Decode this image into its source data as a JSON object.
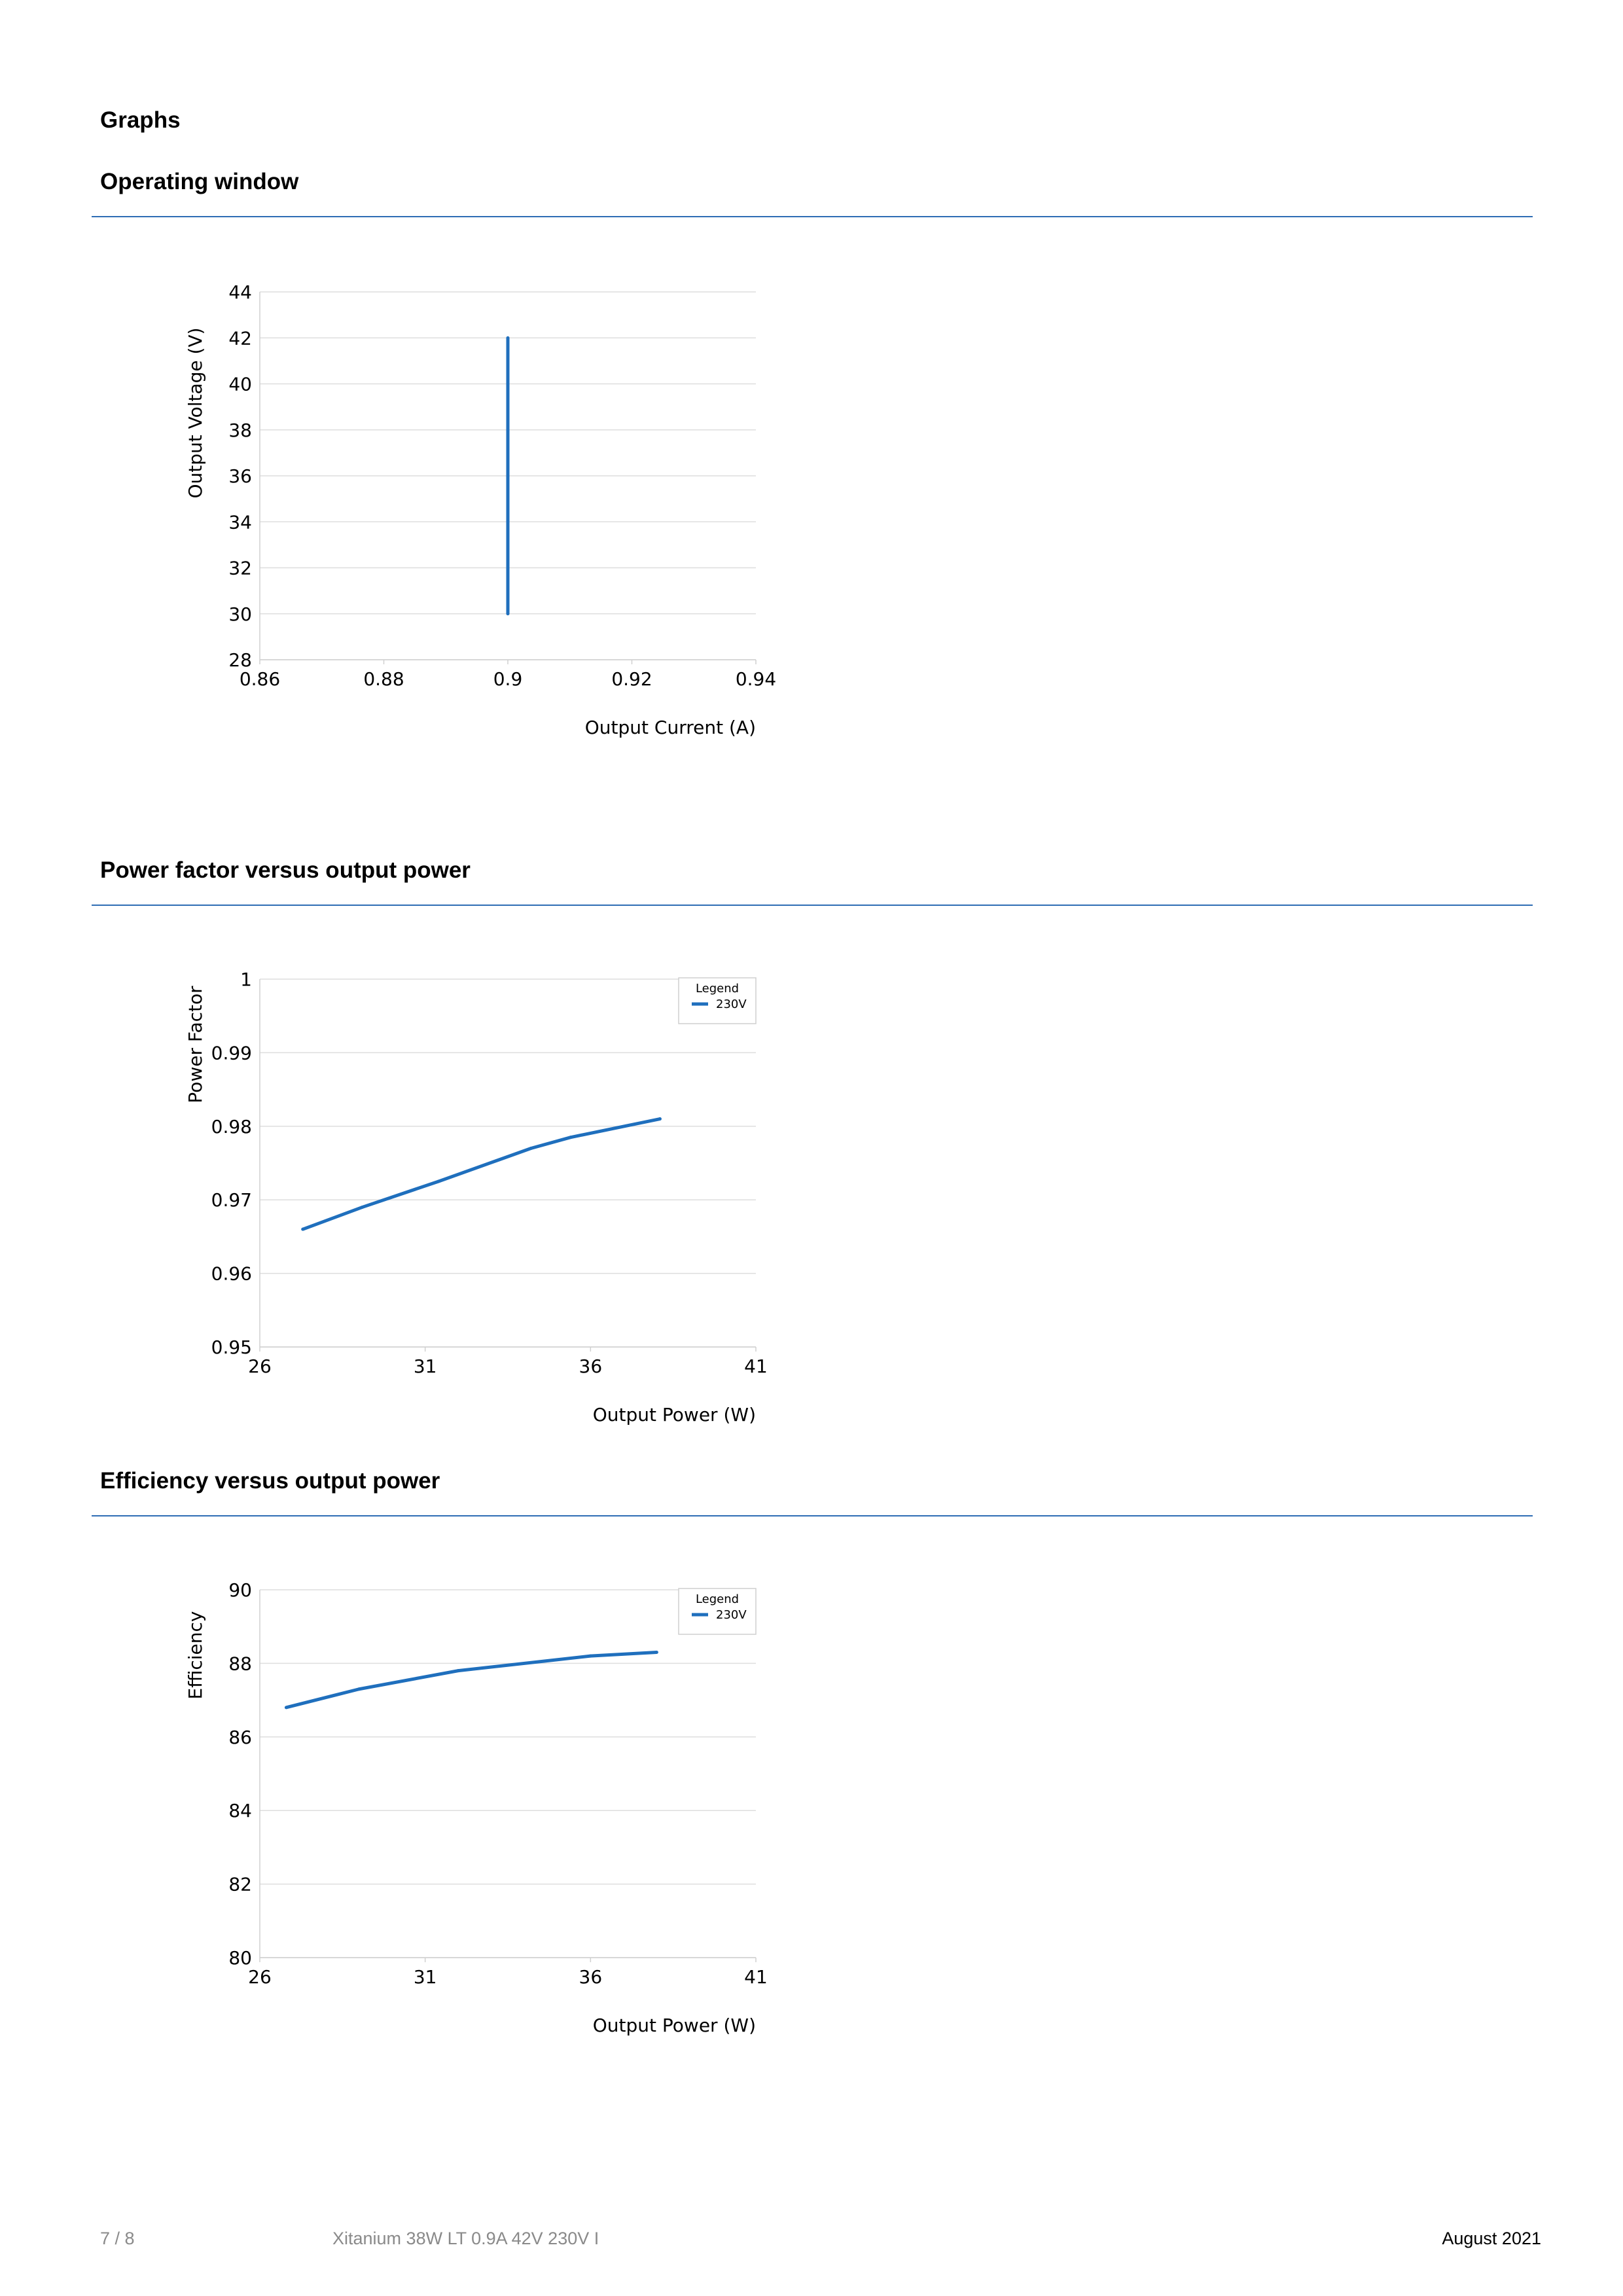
{
  "page": {
    "heading": "Graphs"
  },
  "sections": [
    {
      "title": "Operating window"
    },
    {
      "title": "Power factor versus output power"
    },
    {
      "title": "Efficiency versus output power"
    }
  ],
  "chart_data": [
    {
      "type": "line",
      "title": "",
      "xlabel": "Output Current (A)",
      "ylabel": "Output Voltage (V)",
      "xlim": [
        0.86,
        0.94
      ],
      "ylim": [
        28,
        44
      ],
      "xticks": [
        "0.86",
        "0.88",
        "0.9",
        "0.92",
        "0.94"
      ],
      "yticks": [
        "28",
        "30",
        "32",
        "34",
        "36",
        "38",
        "40",
        "42",
        "44"
      ],
      "grid": "horizontal",
      "legend": null,
      "color": "#1f6fbd",
      "series": [
        {
          "x": [
            0.9,
            0.9
          ],
          "y": [
            30,
            42
          ]
        }
      ]
    },
    {
      "type": "line",
      "title": "",
      "xlabel": "Output Power (W)",
      "ylabel": "Power Factor",
      "xlim": [
        26,
        41
      ],
      "ylim": [
        0.95,
        1
      ],
      "xticks": [
        "26",
        "31",
        "36",
        "41"
      ],
      "yticks": [
        "0.95",
        "0.96",
        "0.97",
        "0.98",
        "0.99",
        "1"
      ],
      "grid": "horizontal",
      "legend": {
        "title": "Legend",
        "placement": "top-right"
      },
      "color": "#1f6fbd",
      "series": [
        {
          "name": "230V",
          "x": [
            27.3,
            29.1,
            31.4,
            34.2,
            35.4,
            38.1
          ],
          "y": [
            0.966,
            0.969,
            0.9725,
            0.977,
            0.9785,
            0.981
          ]
        }
      ]
    },
    {
      "type": "line",
      "title": "",
      "xlabel": "Output Power (W)",
      "ylabel": "Efficiency",
      "xlim": [
        26,
        41
      ],
      "ylim": [
        80,
        90
      ],
      "xticks": [
        "26",
        "31",
        "36",
        "41"
      ],
      "yticks": [
        "80",
        "82",
        "84",
        "86",
        "88",
        "90"
      ],
      "grid": "horizontal",
      "legend": {
        "title": "Legend",
        "placement": "top-right"
      },
      "color": "#1f6fbd",
      "series": [
        {
          "name": "230V",
          "x": [
            26.8,
            29.0,
            32.0,
            36.0,
            38.0
          ],
          "y": [
            86.8,
            87.3,
            87.8,
            88.2,
            88.3
          ]
        }
      ]
    }
  ],
  "footer": {
    "page_number": "7 / 8",
    "product": "Xitanium 38W LT 0.9A 42V 230V I",
    "date": "August 2021"
  }
}
